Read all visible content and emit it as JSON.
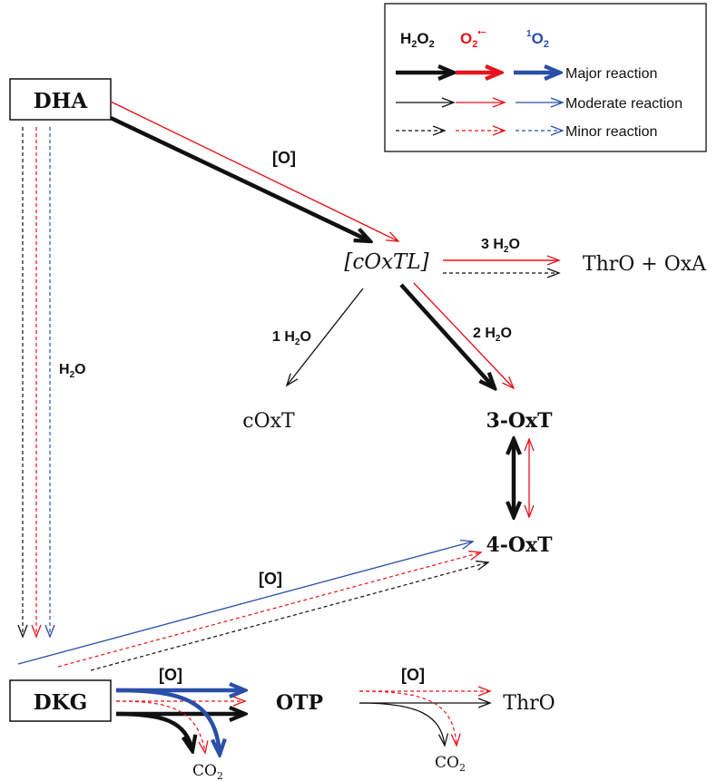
{
  "legend": {
    "h2o2": {
      "main": "H",
      "sub1": "2",
      "mid": "O",
      "sub2": "2"
    },
    "superoxide": {
      "main": "O",
      "sub": "2",
      "sup": "•−"
    },
    "singlet": {
      "sup": "1",
      "main": "O",
      "sub": "2"
    },
    "major": "Major reaction",
    "moderate": "Moderate reaction",
    "minor": "Minor reaction"
  },
  "colors": {
    "h2o2": "#111111",
    "superoxide": "#e8141b",
    "singlet": "#2a4fa8"
  },
  "nodes": {
    "dha": "DHA",
    "coxtl": "[cOxTL]",
    "throxa": "ThrO + OxA",
    "coxt": "cOxT",
    "oxt3": "3-OxT",
    "oxt4": "4-OxT",
    "dkg": "DKG",
    "otp": "OTP",
    "thro": "ThrO",
    "co2_left": {
      "main": "CO",
      "sub": "2"
    },
    "co2_right": {
      "main": "CO",
      "sub": "2"
    }
  },
  "labels": {
    "ox1": "[O]",
    "h2o_3": {
      "pre": "3 H",
      "sub": "2",
      "post": "O"
    },
    "h2o_1": {
      "pre": "1 H",
      "sub": "2",
      "post": "O"
    },
    "h2o_2": {
      "pre": "2 H",
      "sub": "2",
      "post": "O"
    },
    "h2o_left": {
      "pre": "H",
      "sub": "2",
      "post": "O"
    },
    "ox2": "[O]",
    "ox3": "[O]",
    "ox4": "[O]"
  }
}
